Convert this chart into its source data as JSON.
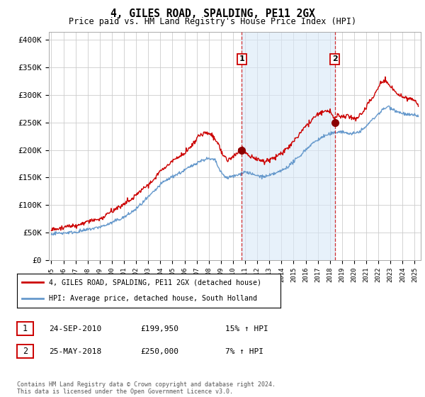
{
  "title": "4, GILES ROAD, SPALDING, PE11 2GX",
  "subtitle": "Price paid vs. HM Land Registry's House Price Index (HPI)",
  "ylabel_ticks": [
    "£0",
    "£50K",
    "£100K",
    "£150K",
    "£200K",
    "£250K",
    "£300K",
    "£350K",
    "£400K"
  ],
  "ytick_values": [
    0,
    50000,
    100000,
    150000,
    200000,
    250000,
    300000,
    350000,
    400000
  ],
  "ylim": [
    0,
    415000
  ],
  "xlim_start": 1994.8,
  "xlim_end": 2025.5,
  "hpi_color": "#6699cc",
  "price_color": "#cc0000",
  "vline_color": "#cc0000",
  "vline_style": "--",
  "vline_alpha": 0.8,
  "marker1_x": 2010.73,
  "marker1_y": 199950,
  "marker2_x": 2018.4,
  "marker2_y": 250000,
  "marker1_label": "1",
  "marker2_label": "2",
  "span_color": "#d8e8f8",
  "span_alpha": 0.6,
  "legend_line1": "4, GILES ROAD, SPALDING, PE11 2GX (detached house)",
  "legend_line2": "HPI: Average price, detached house, South Holland",
  "table_row1": [
    "1",
    "24-SEP-2010",
    "£199,950",
    "15% ↑ HPI"
  ],
  "table_row2": [
    "2",
    "25-MAY-2018",
    "£250,000",
    "7% ↑ HPI"
  ],
  "footer": "Contains HM Land Registry data © Crown copyright and database right 2024.\nThis data is licensed under the Open Government Licence v3.0.",
  "plot_bg_color": "#ffffff",
  "grid_color": "#cccccc",
  "fig_width": 6.0,
  "fig_height": 5.6
}
